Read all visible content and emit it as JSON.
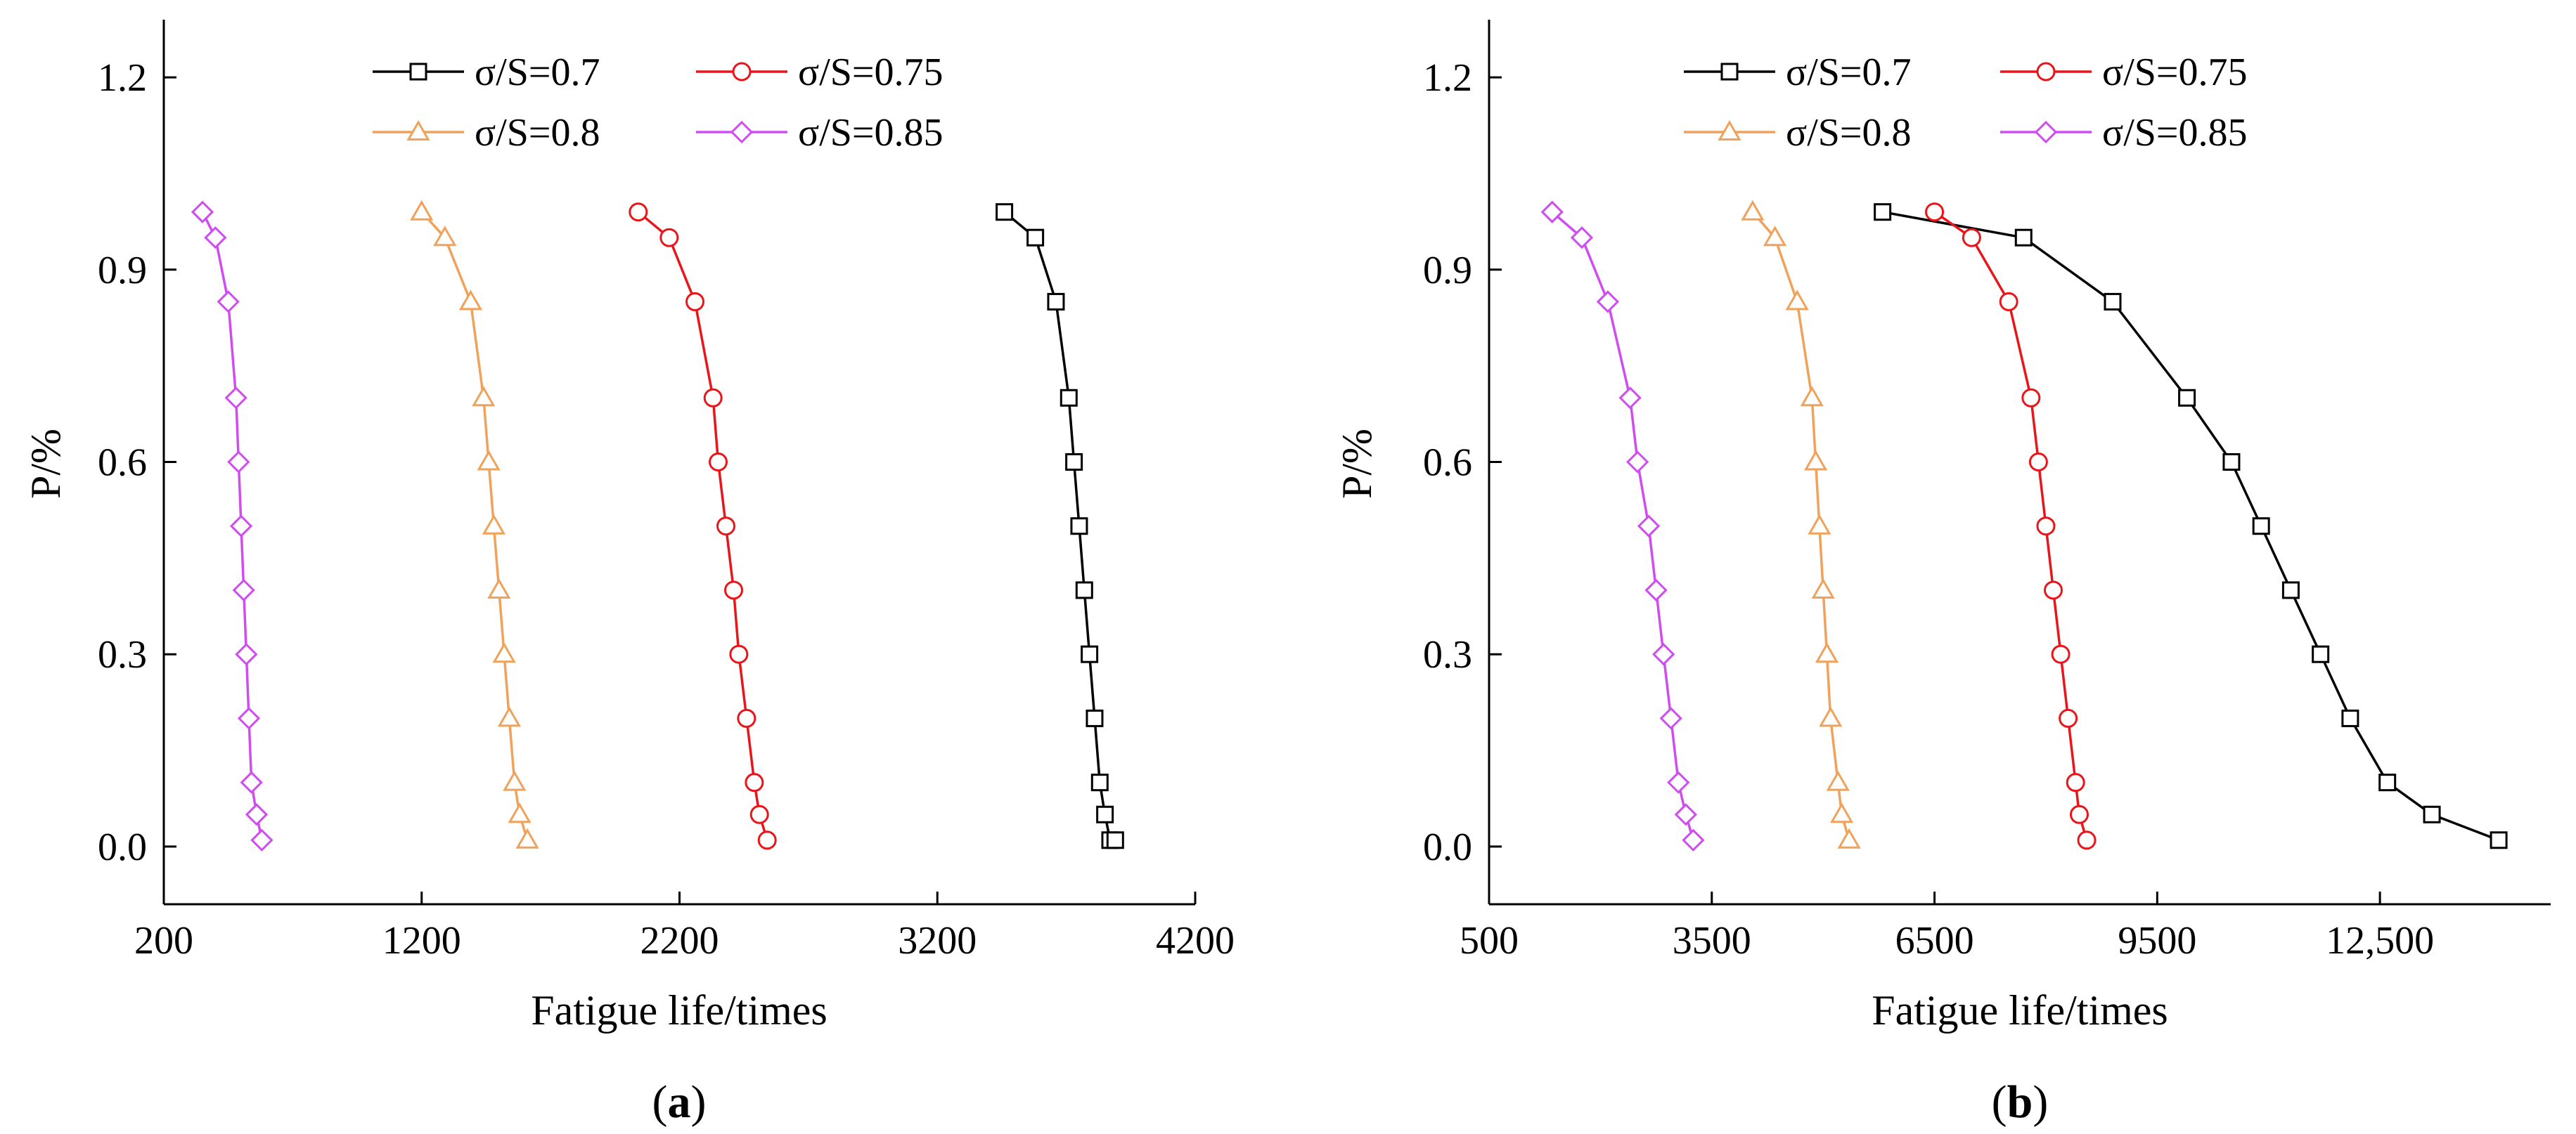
{
  "chart_data": [
    {
      "type": "line",
      "panel_label": "a",
      "xlabel": "Fatigue life/times",
      "ylabel": "P/%",
      "xlim": [
        200,
        4200
      ],
      "ylim": [
        -0.09,
        1.29
      ],
      "xticks": [
        200,
        1200,
        2200,
        3200,
        4200
      ],
      "xtick_labels": [
        "200",
        "1200",
        "2200",
        "3200",
        "4200"
      ],
      "yticks": [
        0.0,
        0.3,
        0.6,
        0.9,
        1.2
      ],
      "ytick_labels": [
        "0.0",
        "0.3",
        "0.6",
        "0.9",
        "1.2"
      ],
      "legend_position": "top",
      "series": [
        {
          "name": "σ/S=0.7",
          "color": "#000000",
          "marker": "square",
          "x": [
            3460,
            3580,
            3660,
            3710,
            3730,
            3750,
            3770,
            3790,
            3810,
            3830,
            3850,
            3870,
            3890
          ],
          "y": [
            0.99,
            0.95,
            0.85,
            0.7,
            0.6,
            0.5,
            0.4,
            0.3,
            0.2,
            0.1,
            0.05,
            0.01,
            0.01
          ]
        },
        {
          "name": "σ/S=0.75",
          "color": "#e8161b",
          "marker": "circle",
          "x": [
            2040,
            2160,
            2260,
            2330,
            2350,
            2380,
            2410,
            2430,
            2460,
            2490,
            2510,
            2540
          ],
          "y": [
            0.99,
            0.95,
            0.85,
            0.7,
            0.6,
            0.5,
            0.4,
            0.3,
            0.2,
            0.1,
            0.05,
            0.01
          ]
        },
        {
          "name": "σ/S=0.8",
          "color": "#f0a25a",
          "marker": "triangle",
          "x": [
            1200,
            1290,
            1390,
            1440,
            1460,
            1480,
            1500,
            1520,
            1540,
            1560,
            1580,
            1610
          ],
          "y": [
            0.99,
            0.95,
            0.85,
            0.7,
            0.6,
            0.5,
            0.4,
            0.3,
            0.2,
            0.1,
            0.05,
            0.01
          ]
        },
        {
          "name": "σ/S=0.85",
          "color": "#d04cf0",
          "marker": "diamond",
          "x": [
            350,
            400,
            450,
            480,
            490,
            500,
            510,
            520,
            530,
            540,
            560,
            580
          ],
          "y": [
            0.99,
            0.95,
            0.85,
            0.7,
            0.6,
            0.5,
            0.4,
            0.3,
            0.2,
            0.1,
            0.05,
            0.01
          ]
        }
      ]
    },
    {
      "type": "line",
      "panel_label": "b",
      "xlabel": "Fatigue life/times",
      "ylabel": "P/%",
      "xlim": [
        500,
        14800
      ],
      "ylim": [
        -0.09,
        1.29
      ],
      "xticks": [
        500,
        3500,
        6500,
        9500,
        12500
      ],
      "xtick_labels": [
        "500",
        "3500",
        "6500",
        "9500",
        "12,500"
      ],
      "yticks": [
        0.0,
        0.3,
        0.6,
        0.9,
        1.2
      ],
      "ytick_labels": [
        "0.0",
        "0.3",
        "0.6",
        "0.9",
        "1.2"
      ],
      "legend_position": "top",
      "series": [
        {
          "name": "σ/S=0.7",
          "color": "#000000",
          "marker": "square",
          "x": [
            5800,
            7700,
            8900,
            9900,
            10500,
            10900,
            11300,
            11700,
            12100,
            12600,
            13200,
            14100
          ],
          "y": [
            0.99,
            0.95,
            0.85,
            0.7,
            0.6,
            0.5,
            0.4,
            0.3,
            0.2,
            0.1,
            0.05,
            0.01
          ]
        },
        {
          "name": "σ/S=0.75",
          "color": "#e8161b",
          "marker": "circle",
          "x": [
            6500,
            7000,
            7500,
            7800,
            7900,
            8000,
            8100,
            8200,
            8300,
            8400,
            8450,
            8550
          ],
          "y": [
            0.99,
            0.95,
            0.85,
            0.7,
            0.6,
            0.5,
            0.4,
            0.3,
            0.2,
            0.1,
            0.05,
            0.01
          ]
        },
        {
          "name": "σ/S=0.8",
          "color": "#f0a25a",
          "marker": "triangle",
          "x": [
            4050,
            4350,
            4650,
            4850,
            4900,
            4950,
            5000,
            5050,
            5100,
            5200,
            5250,
            5350
          ],
          "y": [
            0.99,
            0.95,
            0.85,
            0.7,
            0.6,
            0.5,
            0.4,
            0.3,
            0.2,
            0.1,
            0.05,
            0.01
          ]
        },
        {
          "name": "σ/S=0.85",
          "color": "#d04cf0",
          "marker": "diamond",
          "x": [
            1350,
            1750,
            2100,
            2400,
            2500,
            2650,
            2750,
            2850,
            2950,
            3050,
            3150,
            3250
          ],
          "y": [
            0.99,
            0.95,
            0.85,
            0.7,
            0.6,
            0.5,
            0.4,
            0.3,
            0.2,
            0.1,
            0.05,
            0.01
          ]
        }
      ]
    }
  ]
}
